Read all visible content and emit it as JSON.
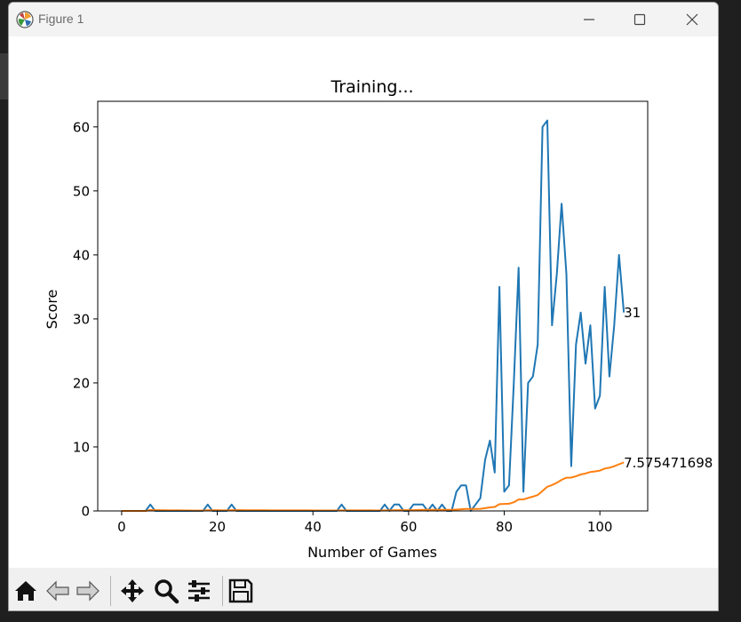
{
  "window": {
    "title": "Figure 1",
    "controls": {
      "minimize": "minimize-icon",
      "maximize": "maximize-icon",
      "close": "close-icon"
    }
  },
  "toolbar": {
    "buttons": [
      "home-icon",
      "back-arrow-icon",
      "forward-arrow-icon",
      "pan-move-icon",
      "zoom-magnifier-icon",
      "configure-subplots-icon",
      "save-floppy-icon"
    ]
  },
  "chart_data": {
    "type": "line",
    "title": "Training...",
    "xlabel": "Number of Games",
    "ylabel": "Score",
    "xlim": [
      -5,
      110
    ],
    "ylim": [
      0,
      64
    ],
    "xticks": [
      0,
      20,
      40,
      60,
      80,
      100
    ],
    "yticks": [
      0,
      10,
      20,
      30,
      40,
      50,
      60
    ],
    "grid": false,
    "legend": "none",
    "series": [
      {
        "color": "#1f77b4",
        "x": [
          0,
          1,
          2,
          3,
          4,
          5,
          6,
          7,
          8,
          9,
          10,
          11,
          12,
          13,
          14,
          15,
          16,
          17,
          18,
          19,
          20,
          21,
          22,
          23,
          24,
          25,
          26,
          27,
          28,
          29,
          30,
          31,
          32,
          33,
          34,
          35,
          36,
          37,
          38,
          39,
          40,
          41,
          42,
          43,
          44,
          45,
          46,
          47,
          48,
          49,
          50,
          51,
          52,
          53,
          54,
          55,
          56,
          57,
          58,
          59,
          60,
          61,
          62,
          63,
          64,
          65,
          66,
          67,
          68,
          69,
          70,
          71,
          72,
          73,
          74,
          75,
          76,
          77,
          78,
          79,
          80,
          81,
          82,
          83,
          84,
          85,
          86,
          87,
          88,
          89,
          90,
          91,
          92,
          93,
          94,
          95,
          96,
          97,
          98,
          99,
          100,
          101,
          102,
          103,
          104,
          105
        ],
        "y": [
          0,
          0,
          0,
          0,
          0,
          0,
          1,
          0,
          0,
          0,
          0,
          0,
          0,
          0,
          0,
          0,
          0,
          0,
          1,
          0,
          0,
          0,
          0,
          1,
          0,
          0,
          0,
          0,
          0,
          0,
          0,
          0,
          0,
          0,
          0,
          0,
          0,
          0,
          0,
          0,
          0,
          0,
          0,
          0,
          0,
          0,
          1,
          0,
          0,
          0,
          0,
          0,
          0,
          0,
          0,
          1,
          0,
          1,
          1,
          0,
          0,
          1,
          1,
          1,
          0,
          1,
          0,
          1,
          0,
          0,
          3,
          4,
          4,
          0,
          1,
          2,
          8,
          11,
          6,
          35,
          3,
          4,
          20,
          38,
          3,
          20,
          21,
          26,
          60,
          61,
          29,
          37,
          48,
          37,
          7,
          26,
          31,
          23,
          29,
          16,
          18,
          35,
          21,
          29,
          40,
          31
        ]
      },
      {
        "color": "#ff7f0e",
        "x": [
          0,
          1,
          2,
          3,
          4,
          5,
          6,
          7,
          8,
          9,
          10,
          11,
          12,
          13,
          14,
          15,
          16,
          17,
          18,
          19,
          20,
          21,
          22,
          23,
          24,
          25,
          26,
          27,
          28,
          29,
          30,
          31,
          32,
          33,
          34,
          35,
          36,
          37,
          38,
          39,
          40,
          41,
          42,
          43,
          44,
          45,
          46,
          47,
          48,
          49,
          50,
          51,
          52,
          53,
          54,
          55,
          56,
          57,
          58,
          59,
          60,
          61,
          62,
          63,
          64,
          65,
          66,
          67,
          68,
          69,
          70,
          71,
          72,
          73,
          74,
          75,
          76,
          77,
          78,
          79,
          80,
          81,
          82,
          83,
          84,
          85,
          86,
          87,
          88,
          89,
          90,
          91,
          92,
          93,
          94,
          95,
          96,
          97,
          98,
          99,
          100,
          101,
          102,
          103,
          104,
          105
        ],
        "y": [
          0,
          0,
          0,
          0,
          0,
          0,
          0.14,
          0.13,
          0.11,
          0.1,
          0.09,
          0.08,
          0.08,
          0.07,
          0.07,
          0.06,
          0.06,
          0.06,
          0.11,
          0.1,
          0.1,
          0.09,
          0.09,
          0.13,
          0.12,
          0.12,
          0.11,
          0.11,
          0.1,
          0.1,
          0.1,
          0.09,
          0.09,
          0.09,
          0.09,
          0.09,
          0.08,
          0.08,
          0.08,
          0.08,
          0.07,
          0.07,
          0.07,
          0.07,
          0.07,
          0.07,
          0.09,
          0.08,
          0.08,
          0.08,
          0.08,
          0.08,
          0.08,
          0.07,
          0.07,
          0.09,
          0.09,
          0.1,
          0.12,
          0.12,
          0.12,
          0.13,
          0.15,
          0.16,
          0.16,
          0.17,
          0.17,
          0.18,
          0.18,
          0.17,
          0.21,
          0.27,
          0.32,
          0.32,
          0.32,
          0.34,
          0.43,
          0.56,
          0.63,
          1.06,
          1.09,
          1.13,
          1.36,
          1.79,
          1.81,
          2.02,
          2.23,
          2.49,
          3.13,
          3.77,
          4.04,
          4.4,
          4.86,
          5.19,
          5.21,
          5.43,
          5.69,
          5.86,
          6.08,
          6.18,
          6.3,
          6.62,
          6.75,
          6.98,
          7.29,
          7.58
        ]
      }
    ],
    "annotations": [
      {
        "text": "31",
        "x": 105,
        "y": 31
      },
      {
        "text": "7.575471698",
        "x": 105,
        "y": 7.575471698
      }
    ]
  }
}
